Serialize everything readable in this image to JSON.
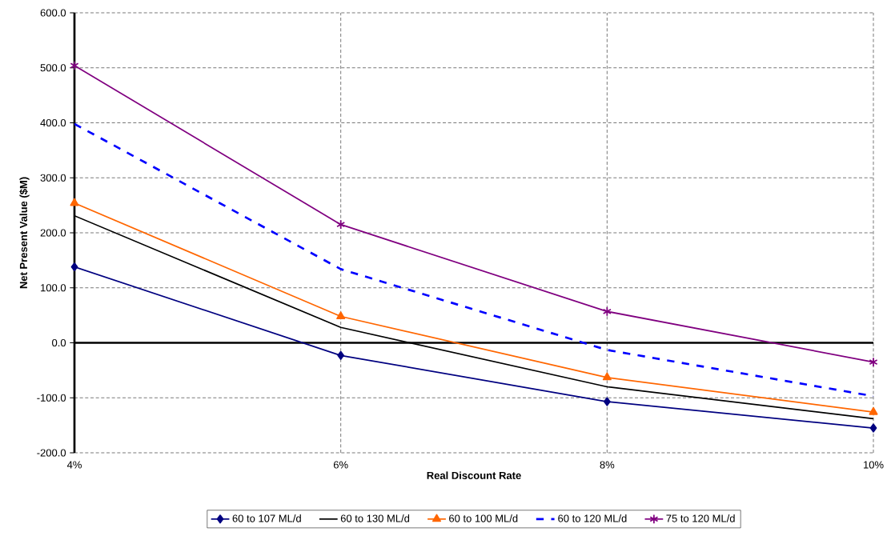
{
  "chart_data": {
    "type": "line",
    "xlabel": "Real Discount Rate",
    "ylabel": "Net Present Value ($M)",
    "categories": [
      "4%",
      "6%",
      "8%",
      "10%"
    ],
    "ylim": [
      -200,
      600
    ],
    "yticks": [
      {
        "value": -200,
        "label": "-200.0"
      },
      {
        "value": -100,
        "label": "-100.0"
      },
      {
        "value": 0,
        "label": "0.0"
      },
      {
        "value": 100,
        "label": "100.0"
      },
      {
        "value": 200,
        "label": "200.0"
      },
      {
        "value": 300,
        "label": "300.0"
      },
      {
        "value": 400,
        "label": "400.0"
      },
      {
        "value": 500,
        "label": "500.0"
      },
      {
        "value": 600,
        "label": "600.0"
      }
    ],
    "grid": true,
    "legend": "bottom",
    "ref_lines": [
      {
        "axis": "y",
        "value": 0,
        "color": "#000000"
      }
    ],
    "series": [
      {
        "name": "60 to 107 ML/d",
        "color": "#000080",
        "values": [
          138,
          -23,
          -107,
          -155
        ],
        "marker": "diamond",
        "line_style": "solid"
      },
      {
        "name": "60 to 130 ML/d",
        "color": "#000000",
        "values": [
          231,
          28,
          -80,
          -138
        ],
        "marker": "none",
        "line_style": "solid"
      },
      {
        "name": "60 to 100 ML/d",
        "color": "#ff6600",
        "values": [
          254,
          48,
          -63,
          -126
        ],
        "marker": "triangle",
        "line_style": "solid"
      },
      {
        "name": "60 to 120 ML/d",
        "color": "#0000ff",
        "values": [
          398,
          134,
          -13,
          -97
        ],
        "marker": "none",
        "line_style": "dashed"
      },
      {
        "name": "75 to 120 ML/d",
        "color": "#800080",
        "values": [
          504,
          215,
          57,
          -35
        ],
        "marker": "cross",
        "line_style": "solid"
      }
    ]
  }
}
